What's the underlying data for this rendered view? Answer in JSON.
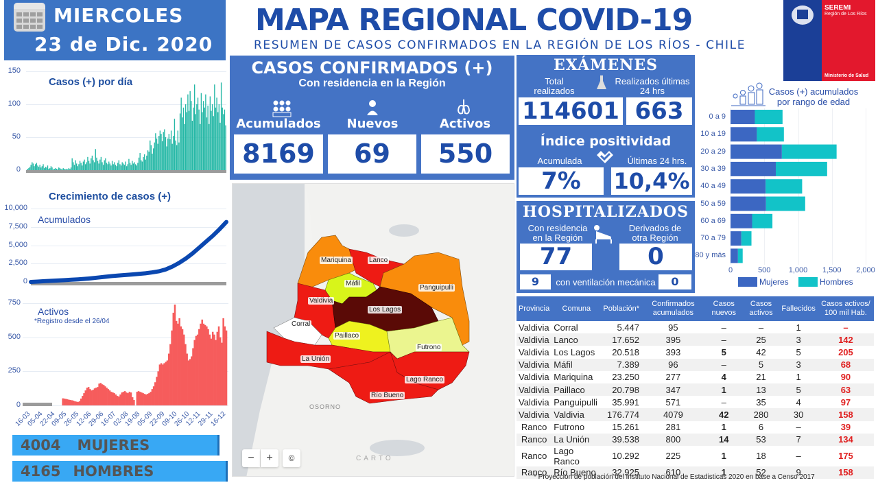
{
  "header": {
    "day": "MIERCOLES",
    "date": "23 de Dic. 2020",
    "title": "MAPA REGIONAL COVID-19",
    "subtitle": "RESUMEN DE CASOS CONFIRMADOS EN LA REGIÓN DE LOS RÍOS - CHILE",
    "logo_line1": "SEREMI",
    "logo_line2": "Región de Los Ríos",
    "logo_line3": "Ministerio de Salud"
  },
  "confirmados": {
    "title": "CASOS CONFIRMADOS (+)",
    "subtitle": "Con residencia en la Región",
    "acumulados_label": "Acumulados",
    "acumulados": "8169",
    "nuevos_label": "Nuevos",
    "nuevos": "69",
    "activos_label": "Activos",
    "activos": "550"
  },
  "examenes": {
    "title": "EXÁMENES",
    "total_label": "Total realizados",
    "total": "114601",
    "ult24_label": "Realizados últimas 24 hrs",
    "ult24": "663",
    "positividad_title": "Índice positividad",
    "acumulada_label": "Acumulada",
    "acumulada": "7%",
    "ultimas_label": "Últimas 24 hrs.",
    "ultimas": "10,4%"
  },
  "hospitalizados": {
    "title": "HOSPITALIZADOS",
    "residencia_label": "Con residencia en la Región",
    "residencia": "77",
    "derivados_label": "Derivados de otra Región",
    "derivados": "0",
    "ventilacion_label": "con ventilación mecánica",
    "ventilacion_residencia": "9",
    "ventilacion_derivados": "0"
  },
  "gender": {
    "mujeres_count": "4004",
    "mujeres_label": "MUJERES",
    "hombres_count": "4165",
    "hombres_label": "HOMBRES"
  },
  "map": {
    "labels": [
      "Mariquina",
      "Lanco",
      "Máfil",
      "Panguipulli",
      "Valdivia",
      "Los Lagos",
      "Corral",
      "Paillaco",
      "Futrono",
      "La Unión",
      "Lago Ranco",
      "Río Bueno",
      "OSORNO"
    ],
    "zoom_out": "−",
    "zoom_in": "+",
    "attribution": "©",
    "brand": "CARTO"
  },
  "table": {
    "headers": [
      "Provincia",
      "Comuna",
      "Población*",
      "Confirmados acumulados",
      "Casos nuevos",
      "Casos activos",
      "Fallecidos",
      "Casos activos/ 100 mil Hab."
    ],
    "rows": [
      [
        "Valdivia",
        "Corral",
        "5.447",
        "95",
        "–",
        "–",
        "1",
        "–"
      ],
      [
        "Valdivia",
        "Lanco",
        "17.652",
        "395",
        "–",
        "25",
        "3",
        "142"
      ],
      [
        "Valdivia",
        "Los Lagos",
        "20.518",
        "393",
        "5",
        "42",
        "5",
        "205"
      ],
      [
        "Valdivia",
        "Máfil",
        "7.389",
        "96",
        "–",
        "5",
        "3",
        "68"
      ],
      [
        "Valdivia",
        "Mariquina",
        "23.250",
        "277",
        "4",
        "21",
        "1",
        "90"
      ],
      [
        "Valdivia",
        "Paillaco",
        "20.798",
        "347",
        "1",
        "13",
        "5",
        "63"
      ],
      [
        "Valdivia",
        "Panguipulli",
        "35.991",
        "571",
        "–",
        "35",
        "4",
        "97"
      ],
      [
        "Valdivia",
        "Valdivia",
        "176.774",
        "4079",
        "42",
        "280",
        "30",
        "158"
      ],
      [
        "Ranco",
        "Futrono",
        "15.261",
        "281",
        "1",
        "6",
        "–",
        "39"
      ],
      [
        "Ranco",
        "La Unión",
        "39.538",
        "800",
        "14",
        "53",
        "7",
        "134"
      ],
      [
        "Ranco",
        "Lago Ranco",
        "10.292",
        "225",
        "1",
        "18",
        "–",
        "175"
      ],
      [
        "Ranco",
        "Río Bueno",
        "32.925",
        "610",
        "1",
        "52",
        "9",
        "158"
      ]
    ],
    "footnote": "* Proyección de población del Instituto Nacional de Estadisticas 2020 en base a Censo 2017"
  },
  "chart_data": [
    {
      "type": "bar",
      "title": "Casos (+) por día",
      "yticks": [
        "0",
        "50",
        "100",
        "150"
      ],
      "ylim": [
        0,
        150
      ],
      "color": "#26b8a6",
      "values": [
        0,
        2,
        3,
        5,
        8,
        12,
        10,
        6,
        9,
        11,
        7,
        5,
        8,
        4,
        6,
        9,
        3,
        5,
        4,
        7,
        2,
        3,
        6,
        4,
        1,
        2,
        3,
        2,
        1,
        4,
        3,
        2,
        1,
        3,
        2,
        1,
        2,
        1,
        3,
        2,
        4,
        18,
        12,
        8,
        15,
        10,
        6,
        9,
        14,
        11,
        7,
        13,
        16,
        9,
        12,
        20,
        14,
        10,
        18,
        22,
        15,
        12,
        32,
        19,
        14,
        10,
        16,
        20,
        12,
        8,
        15,
        18,
        11,
        9,
        13,
        10,
        7,
        14,
        9,
        12,
        8,
        6,
        11,
        15,
        9,
        7,
        12,
        10,
        8,
        13,
        6,
        9,
        17,
        11,
        8,
        14,
        10,
        12,
        9,
        7,
        11,
        19,
        26,
        15,
        13,
        20,
        24,
        16,
        22,
        30,
        28,
        45,
        38,
        25,
        33,
        42,
        56,
        48,
        40,
        52,
        60,
        55,
        44,
        58,
        62,
        50,
        36,
        48,
        55,
        47,
        60,
        40,
        52,
        78,
        45,
        38,
        60,
        42,
        86,
        110,
        80,
        95,
        70,
        100,
        88,
        115,
        90,
        120,
        105,
        75,
        95,
        130,
        85,
        100,
        110,
        92,
        70,
        117,
        88,
        105,
        95,
        115,
        80,
        98,
        70,
        112,
        90,
        100,
        82,
        130,
        95,
        110,
        88,
        100,
        72,
        133,
        95,
        85,
        92,
        68
      ],
      "xlabel": "",
      "ylabel": ""
    },
    {
      "type": "line",
      "title": "Crecimiento de casos (+)",
      "annotation": "Acumulados",
      "yticks": [
        "0",
        "2,500",
        "5,000",
        "7,500",
        "10,000"
      ],
      "ylim": [
        0,
        10000
      ],
      "color": "#0a47b0",
      "values": [
        0,
        50,
        100,
        150,
        200,
        250,
        300,
        350,
        420,
        500,
        600,
        700,
        800,
        880,
        950,
        1020,
        1100,
        1180,
        1300,
        1450,
        1700,
        2100,
        2600,
        3200,
        3900,
        4700,
        5500,
        6300,
        7200,
        8169
      ],
      "xlabel": "",
      "ylabel": ""
    },
    {
      "type": "area",
      "title": "Activos",
      "annotation": "*Registro desde el 26/04",
      "yticks": [
        "0",
        "250",
        "500",
        "750"
      ],
      "ylim": [
        0,
        750
      ],
      "color": "#f65c5c",
      "x_ticks": [
        "16-03",
        "05-04",
        "22-04",
        "09-05",
        "26-05",
        "12-06",
        "29-06",
        "16-07",
        "02-08",
        "19-08",
        "05-09",
        "22-09",
        "09-10",
        "26-10",
        "12-11",
        "29-11",
        "16-12"
      ],
      "values": [
        0,
        0,
        0,
        0,
        0,
        0,
        0,
        0,
        0,
        0,
        0,
        0,
        0,
        0,
        0,
        0,
        0,
        0,
        0,
        0,
        0,
        0,
        0,
        0,
        0,
        0,
        52,
        50,
        48,
        45,
        42,
        40,
        38,
        35,
        30,
        28,
        25,
        30,
        50,
        70,
        90,
        110,
        130,
        135,
        120,
        110,
        115,
        125,
        130,
        135,
        160,
        165,
        155,
        150,
        140,
        130,
        120,
        110,
        100,
        95,
        90,
        80,
        70,
        65,
        80,
        95,
        100,
        105,
        95,
        90,
        100,
        95,
        60,
        40,
        0,
        100,
        105,
        100,
        95,
        90,
        85,
        80,
        85,
        90,
        100,
        120,
        140,
        170,
        210,
        250,
        300,
        310,
        300,
        310,
        320,
        330,
        380,
        450,
        550,
        680,
        740,
        620,
        600,
        640,
        580,
        560,
        520,
        450,
        380,
        330,
        340,
        360,
        420,
        480,
        510,
        520,
        560,
        600,
        630,
        600,
        590,
        580,
        560,
        520,
        490,
        540,
        520,
        480,
        540,
        580,
        500,
        460,
        640,
        580,
        550
      ],
      "xlabel": "",
      "ylabel": ""
    },
    {
      "type": "bar",
      "orientation": "horizontal",
      "stacked": true,
      "title": "Casos (+) acumulados por rango de edad",
      "categories": [
        "0 a 9",
        "10 a 19",
        "20 a 29",
        "30 a 39",
        "40 a 49",
        "50 a 59",
        "60 a 69",
        "70 a 79",
        "80 y más"
      ],
      "series": [
        {
          "name": "Mujeres",
          "color": "#3c67c2",
          "values": [
            360,
            390,
            760,
            670,
            520,
            525,
            320,
            160,
            110
          ]
        },
        {
          "name": "Hombres",
          "color": "#12c3c8",
          "values": [
            410,
            400,
            810,
            760,
            540,
            580,
            300,
            150,
            70
          ]
        }
      ],
      "xticks": [
        "0",
        "500",
        "1,000",
        "1,500",
        "2,000"
      ],
      "xlim": [
        0,
        2000
      ],
      "legend": "bottom"
    }
  ]
}
